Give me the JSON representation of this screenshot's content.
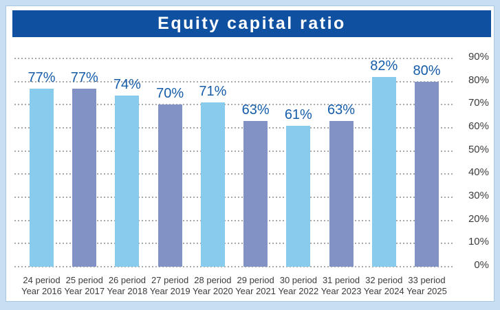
{
  "title_bar": {
    "text": "Equity capital ratio"
  },
  "colors": {
    "frame_bg": "#C8DEF2",
    "panel_bg": "#FFFFFF",
    "panel_border": "#A6C6E3",
    "title_bg": "#0F50A1",
    "title_text": "#FFFFFF",
    "bar_light_blue": "#89CBED",
    "bar_slate_blue": "#8292C4",
    "data_label": "#155CA9",
    "grid_dots": "#A9A9A9",
    "axis_text": "#3C3C3C"
  },
  "chart_data": {
    "type": "bar",
    "title": "Equity capital ratio",
    "categories": [
      {
        "period": "24 period",
        "year": "Year 2016"
      },
      {
        "period": "25 period",
        "year": "Year 2017"
      },
      {
        "period": "26 period",
        "year": "Year 2018"
      },
      {
        "period": "27 period",
        "year": "Year 2019"
      },
      {
        "period": "28 period",
        "year": "Year 2020"
      },
      {
        "period": "29 period",
        "year": "Year 2021"
      },
      {
        "period": "30 period",
        "year": "Year 2022"
      },
      {
        "period": "31 period",
        "year": "Year 2023"
      },
      {
        "period": "32 period",
        "year": "Year 2024"
      },
      {
        "period": "33 period",
        "year": "Year 2025"
      }
    ],
    "values": [
      77,
      77,
      74,
      70,
      71,
      63,
      61,
      63,
      82,
      80
    ],
    "data_labels": [
      "77%",
      "77%",
      "74%",
      "70%",
      "71%",
      "63%",
      "61%",
      "63%",
      "82%",
      "80%"
    ],
    "bar_colors_alternating": [
      "#89CBED",
      "#8292C4"
    ],
    "xlabel": "",
    "ylabel": "",
    "ylim": [
      0,
      90
    ],
    "yticks": [
      0,
      10,
      20,
      30,
      40,
      50,
      60,
      70,
      80,
      90
    ],
    "ytick_labels": [
      "0%",
      "10%",
      "20%",
      "30%",
      "40%",
      "50%",
      "60%",
      "70%",
      "80%",
      "90%"
    ],
    "y_axis_side": "right",
    "grid": "horizontal-dotted",
    "legend": "none"
  }
}
